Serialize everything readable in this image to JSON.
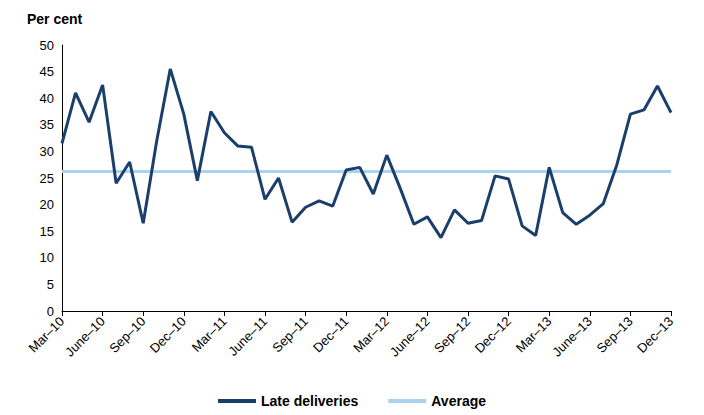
{
  "chart_data": {
    "type": "line",
    "y_label": "Per cent",
    "categories": [
      "Mar–10",
      null,
      null,
      "June–10",
      null,
      null,
      "Sep–10",
      null,
      null,
      "Dec–10",
      null,
      null,
      "Mar–11",
      null,
      null,
      "June–11",
      null,
      null,
      "Sep–11",
      null,
      null,
      "Dec–11",
      null,
      null,
      "Mar–12",
      null,
      null,
      "June–12",
      null,
      null,
      "Sep–12",
      null,
      null,
      "Dec–12",
      null,
      null,
      "Mar–13",
      null,
      null,
      "June–13",
      null,
      null,
      "Sep–13",
      null,
      null,
      "Dec–13"
    ],
    "series": [
      {
        "name": "Late deliveries",
        "color": "#1b3f6b",
        "line_style": "solid",
        "marker": "none",
        "values": [
          31.5,
          41,
          35.5,
          42.5,
          24,
          28,
          16.5,
          32,
          45.5,
          37,
          24.5,
          37.5,
          33.5,
          31,
          30.8,
          21,
          25,
          16.7,
          19.5,
          20.7,
          19.7,
          26.5,
          27,
          22,
          29.3,
          23,
          16.3,
          17.7,
          13.8,
          19,
          16.5,
          17,
          25.4,
          24.8,
          16,
          14.2,
          27,
          18.5,
          16.3,
          18,
          20.2,
          27.5,
          37,
          37.8,
          42.3,
          37.3
        ]
      },
      {
        "name": "Average",
        "color": "#a9d3ef",
        "line_style": "solid",
        "marker": "none",
        "values": [
          26.2,
          26.2,
          26.2,
          26.2,
          26.2,
          26.2,
          26.2,
          26.2,
          26.2,
          26.2,
          26.2,
          26.2,
          26.2,
          26.2,
          26.2,
          26.2,
          26.2,
          26.2,
          26.2,
          26.2,
          26.2,
          26.2,
          26.2,
          26.2,
          26.2,
          26.2,
          26.2,
          26.2,
          26.2,
          26.2,
          26.2,
          26.2,
          26.2,
          26.2,
          26.2,
          26.2,
          26.2,
          26.2,
          26.2,
          26.2,
          26.2,
          26.2,
          26.2,
          26.2,
          26.2,
          26.2
        ]
      }
    ],
    "ylim": [
      0,
      50
    ],
    "yticks": [
      0,
      5,
      10,
      15,
      20,
      25,
      30,
      35,
      40,
      45,
      50
    ],
    "grid": false,
    "legend": "bottom"
  }
}
